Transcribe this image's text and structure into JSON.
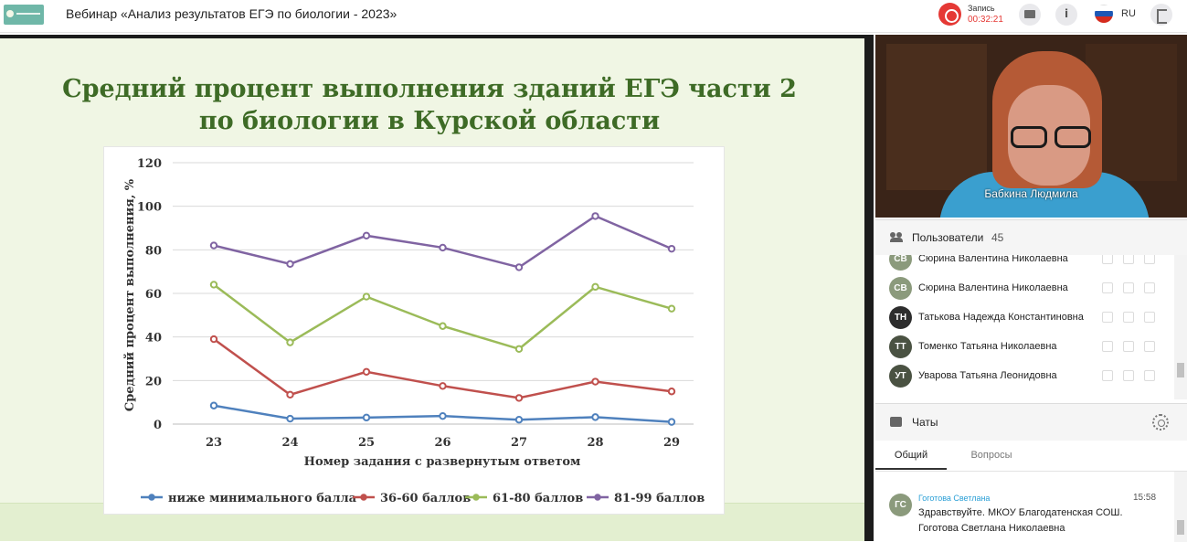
{
  "topbar": {
    "title": "Вебинар «Анализ результатов ЕГЭ по биологии - 2023»",
    "record_label": "Запись",
    "record_time": "00:32:21",
    "language": "RU"
  },
  "slide": {
    "title_line1": "Средний процент выполнения зданий ЕГЭ части 2",
    "title_line2": "по биологии в Курской области"
  },
  "chart_data": {
    "type": "line",
    "categories": [
      "23",
      "24",
      "25",
      "26",
      "27",
      "28",
      "29"
    ],
    "series": [
      {
        "name": "ниже минимального балла",
        "color": "#4f81bd",
        "values": [
          8.5,
          2.5,
          3,
          3.7,
          2,
          3.2,
          1
        ]
      },
      {
        "name": "36-60 баллов",
        "color": "#c0504d",
        "values": [
          39,
          13.5,
          24,
          17.5,
          12,
          19.5,
          15
        ]
      },
      {
        "name": "61-80 баллов",
        "color": "#9bbb59",
        "values": [
          64,
          37.5,
          58.5,
          45,
          34.5,
          63,
          53
        ]
      },
      {
        "name": "81-99 баллов",
        "color": "#8064a2",
        "values": [
          82,
          73.5,
          86.5,
          81,
          72,
          95.5,
          80.5
        ]
      }
    ],
    "ylim": [
      0,
      120
    ],
    "yticks": [
      "0",
      "20",
      "40",
      "60",
      "80",
      "100",
      "120"
    ],
    "xlabel": "Номер задания с развернутым ответом",
    "ylabel": "Средний процент выполнения, %",
    "grid": true,
    "legend_position": "bottom"
  },
  "video": {
    "speaker_name": "Бабкина Людмила"
  },
  "users": {
    "title": "Пользователи",
    "count": "45",
    "list": [
      {
        "initials": "СВ",
        "name": "Сюрина Валентина Николаевна",
        "avatar_color": "#8b9a7c"
      },
      {
        "initials": "СВ",
        "name": "Сюрина Валентина Николаевна",
        "avatar_color": "#8b9a7c"
      },
      {
        "initials": "ТН",
        "name": "Татькова Надежда Константиновна",
        "avatar_color": "#2d2d2d"
      },
      {
        "initials": "ТТ",
        "name": "Томенко Татьяна Николаевна",
        "avatar_color": "#4a5242"
      },
      {
        "initials": "УТ",
        "name": "Уварова Татьяна Леонидовна",
        "avatar_color": "#4a5242"
      }
    ]
  },
  "chat": {
    "title": "Чаты",
    "tabs": [
      "Общий",
      "Вопросы"
    ],
    "message": {
      "initials": "ГС",
      "author": "Гоготова Светлана",
      "time": "15:58",
      "text": "Здравствуйте. МКОУ Благодатенская СОШ. Гоготова Светлана Николаевна"
    }
  }
}
